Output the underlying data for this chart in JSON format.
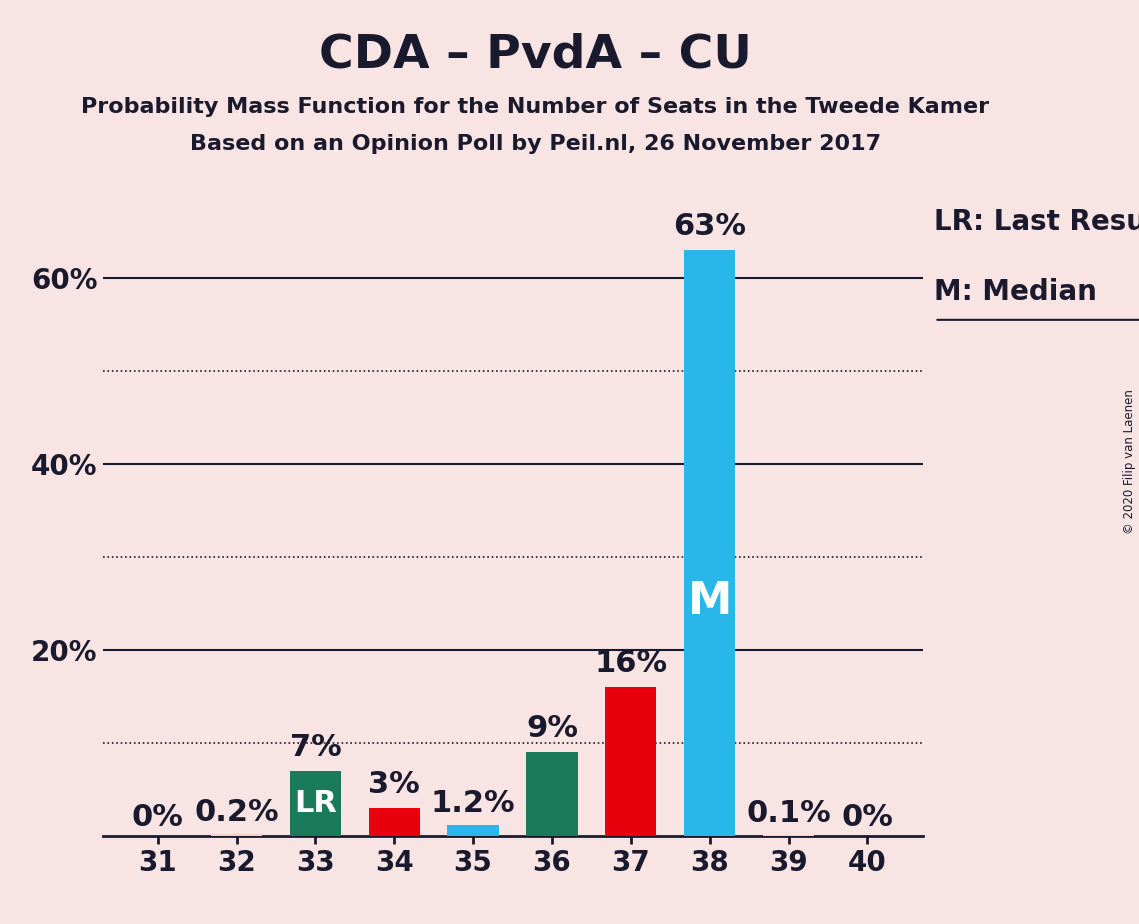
{
  "title": "CDA – PvdA – CU",
  "subtitle1": "Probability Mass Function for the Number of Seats in the Tweede Kamer",
  "subtitle2": "Based on an Opinion Poll by Peil.nl, 26 November 2017",
  "copyright": "© 2020 Filip van Laenen",
  "categories": [
    31,
    32,
    33,
    34,
    35,
    36,
    37,
    38,
    39,
    40
  ],
  "values": [
    0.0,
    0.2,
    7.0,
    3.0,
    1.2,
    9.0,
    16.0,
    63.0,
    0.1,
    0.0
  ],
  "bar_colors": [
    "#f2d0d0",
    "#f2d0d0",
    "#1b7a5a",
    "#e8000d",
    "#29b6e8",
    "#1b7a5a",
    "#e8000d",
    "#29b6e8",
    "#f2d0d0",
    "#f2d0d0"
  ],
  "background_color": "#f9e4e4",
  "label_color": "#1a1a2e",
  "LR_seat": 33,
  "Median_seat": 38,
  "ylim": [
    0,
    72
  ],
  "bar_value_labels": [
    "0%",
    "0.2%",
    "7%",
    "3%",
    "1.2%",
    "9%",
    "16%",
    "63%",
    "0.1%",
    "0%"
  ],
  "title_fontsize": 34,
  "subtitle_fontsize": 16,
  "tick_fontsize": 20,
  "annotation_fontsize": 22,
  "legend_fontsize": 20,
  "solid_gridlines": [
    20,
    40,
    60
  ],
  "dotted_gridlines": [
    10,
    30,
    50
  ],
  "bar_width": 0.65
}
